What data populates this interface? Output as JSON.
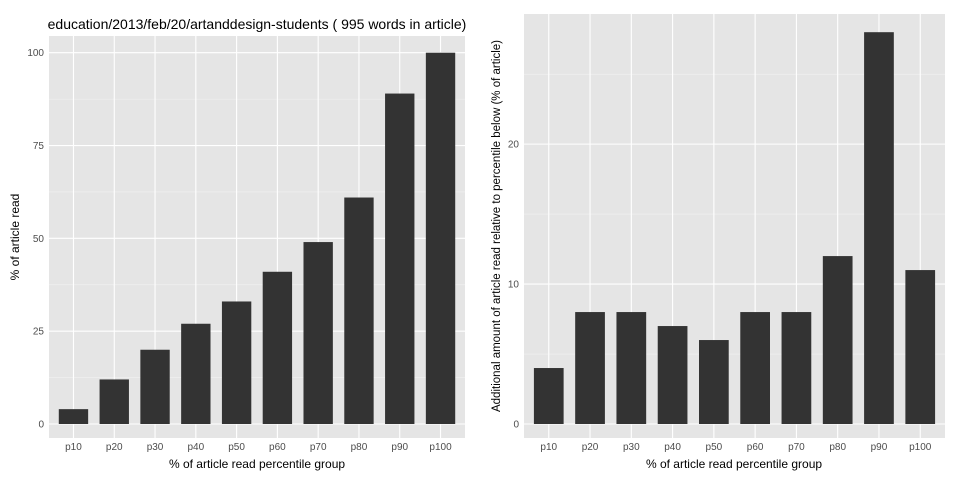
{
  "chart_data": [
    {
      "type": "bar",
      "title": "education/2013/feb/20/artanddesign-students ( 995 words in article)",
      "xlabel": "% of article read percentile group",
      "ylabel": "% of article read",
      "categories": [
        "p10",
        "p20",
        "p30",
        "p40",
        "p50",
        "p60",
        "p70",
        "p80",
        "p90",
        "p100"
      ],
      "values": [
        4,
        12,
        20,
        27,
        33,
        41,
        49,
        61,
        89,
        100
      ],
      "ylim": [
        0,
        104.5
      ],
      "yticks": [
        0,
        25,
        50,
        75,
        100
      ],
      "grid": true,
      "bar_color": "#333333",
      "panel_color": "#e5e5e5"
    },
    {
      "type": "bar",
      "title": "",
      "xlabel": "% of article read percentile group",
      "ylabel": "Additional amount of article read relative to percentile below (% of article)",
      "categories": [
        "p10",
        "p20",
        "p30",
        "p40",
        "p50",
        "p60",
        "p70",
        "p80",
        "p90",
        "p100"
      ],
      "values": [
        4,
        8,
        8,
        7,
        6,
        8,
        8,
        12,
        28,
        11
      ],
      "ylim": [
        0,
        29.3
      ],
      "yticks": [
        0,
        10,
        20
      ],
      "grid": true,
      "bar_color": "#333333",
      "panel_color": "#e5e5e5"
    }
  ]
}
